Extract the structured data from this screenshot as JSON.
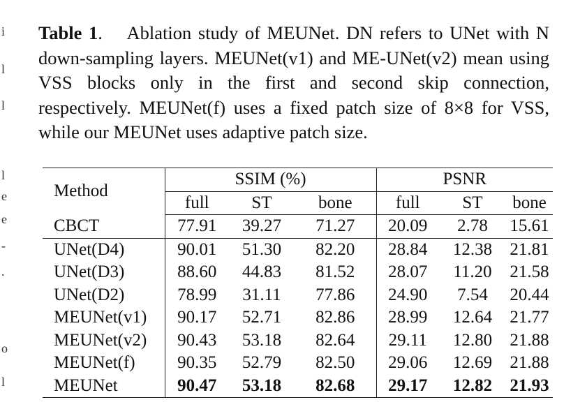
{
  "caption": {
    "label": "Table 1",
    "text": ".  Ablation study of MEUNet. DN refers to UNet with N down-sampling layers. MEUNet(v1) and ME-UNet(v2) mean using VSS blocks only in the first and second skip connection, respectively. MEUNet(f) uses a fixed patch size of 8×8 for VSS, while our MEUNet uses adaptive patch size."
  },
  "table": {
    "method_header": "Method",
    "group_ssim": "SSIM (%)",
    "group_psnr": "PSNR",
    "sub_headers": [
      "full",
      "ST",
      "bone",
      "full",
      "ST",
      "bone"
    ],
    "rows": [
      {
        "name": "CBCT",
        "values": [
          "77.91",
          "39.27",
          "71.27",
          "20.09",
          "2.78",
          "15.61"
        ]
      },
      {
        "name": "UNet(D4)",
        "values": [
          "90.01",
          "51.30",
          "82.20",
          "28.84",
          "12.38",
          "21.81"
        ]
      },
      {
        "name": "UNet(D3)",
        "values": [
          "88.60",
          "44.83",
          "81.52",
          "28.07",
          "11.20",
          "21.58"
        ]
      },
      {
        "name": "UNet(D2)",
        "values": [
          "78.99",
          "31.11",
          "77.86",
          "24.90",
          "7.54",
          "20.44"
        ]
      },
      {
        "name": "MEUNet(v1)",
        "values": [
          "90.17",
          "52.71",
          "82.86",
          "28.99",
          "12.64",
          "21.77"
        ]
      },
      {
        "name": "MEUNet(v2)",
        "values": [
          "90.43",
          "53.18",
          "82.64",
          "29.11",
          "12.80",
          "21.88"
        ]
      },
      {
        "name": "MEUNet(f)",
        "values": [
          "90.35",
          "52.79",
          "82.50",
          "29.06",
          "12.69",
          "21.88"
        ]
      },
      {
        "name": "MEUNet",
        "values": [
          "90.47",
          "53.18",
          "82.68",
          "29.17",
          "12.82",
          "21.93"
        ]
      }
    ]
  }
}
